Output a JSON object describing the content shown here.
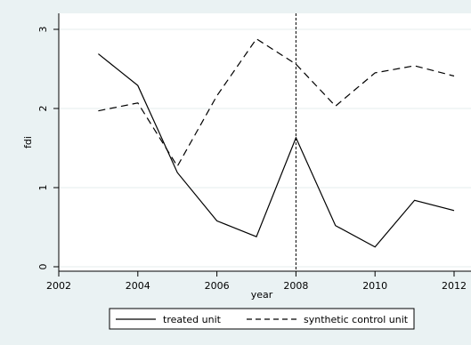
{
  "chart_data": {
    "type": "line",
    "title": "",
    "xlabel": "year",
    "ylabel": "fdi",
    "xlim": [
      2002,
      2012
    ],
    "ylim": [
      0,
      3
    ],
    "x_ticks": [
      2002,
      2004,
      2006,
      2008,
      2010,
      2012
    ],
    "y_ticks": [
      0,
      1,
      2,
      3
    ],
    "x_tick_labels": [
      "2002",
      "2004",
      "2006",
      "2008",
      "2010",
      "2012"
    ],
    "y_tick_labels": [
      "0",
      "1",
      "2",
      "3"
    ],
    "grid": true,
    "reference_line_x": 2008,
    "legend_position": "bottom",
    "series": [
      {
        "name": "treated unit",
        "line_style": "solid",
        "x": [
          2003,
          2004,
          2005,
          2006,
          2007,
          2008,
          2009,
          2010,
          2011,
          2012
        ],
        "y": [
          2.69,
          2.29,
          1.19,
          0.58,
          0.38,
          1.63,
          0.52,
          0.25,
          0.84,
          0.71
        ]
      },
      {
        "name": "synthetic control unit",
        "line_style": "dashed",
        "x": [
          2003,
          2004,
          2005,
          2006,
          2007,
          2008,
          2009,
          2010,
          2011,
          2012
        ],
        "y": [
          1.97,
          2.07,
          1.27,
          2.16,
          2.88,
          2.56,
          2.03,
          2.45,
          2.54,
          2.41
        ]
      }
    ]
  }
}
